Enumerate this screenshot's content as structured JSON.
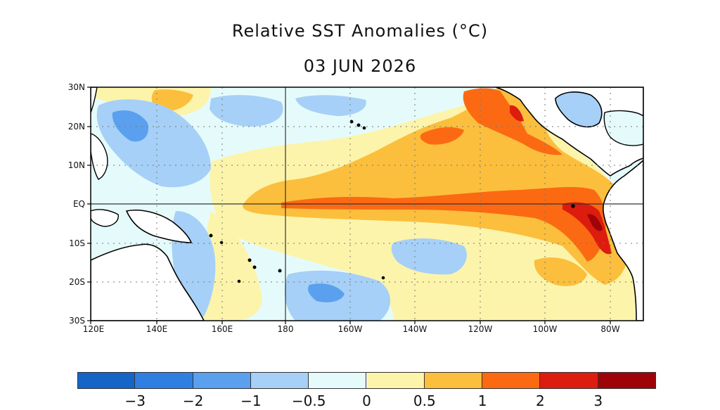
{
  "title": "Relative SST Anomalies (°C)",
  "date": "03 JUN 2026",
  "map": {
    "region": "Tropical Pacific Ocean",
    "lat_labels": [
      "30N",
      "20N",
      "10N",
      "EQ",
      "10S",
      "20S",
      "30S"
    ],
    "lon_labels": [
      "120E",
      "140E",
      "160E",
      "180",
      "160W",
      "140W",
      "120W",
      "100W",
      "80W"
    ],
    "land_color": "#ffffff",
    "coastline_color": "#000000",
    "gridline_style": "dotted",
    "emphasized_lines": [
      "EQ",
      "180"
    ]
  },
  "colorbar": {
    "colors": [
      "#1565c8",
      "#2f7fe3",
      "#5aa0ee",
      "#a6d0f7",
      "#e5fbfb",
      "#fdf4ab",
      "#fbbf3d",
      "#fb6a12",
      "#dc1c0e",
      "#9e0308"
    ],
    "tick_labels": [
      "−3",
      "−2",
      "−1",
      "−0.5",
      "0",
      "0.5",
      "1",
      "2",
      "3"
    ]
  },
  "anomaly_features": [
    {
      "name": "equatorial-warm-tongue",
      "level": 1.5
    },
    {
      "name": "peru-coast-peak",
      "level": 3.2
    },
    {
      "name": "northeast-warm-region",
      "level": 1.3
    },
    {
      "name": "baja-warm-core",
      "level": 2.4
    },
    {
      "name": "western-pacific-cool-pool",
      "level": -0.8
    },
    {
      "name": "southwest-cool-pool",
      "level": -0.8
    },
    {
      "name": "south-central-cool-pool",
      "level": -0.7
    }
  ]
}
